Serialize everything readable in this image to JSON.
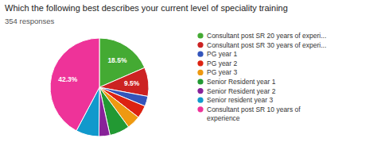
{
  "chart_data": {
    "type": "pie",
    "title": "Which the following best describes your current level of speciality training",
    "subtitle": "354 responses",
    "categories": [
      "Consultant post SR 20 years of experi...",
      "Consultant post SR 30 years of experi...",
      "PG year 1",
      "PG year 2",
      "PG year 3",
      "Senior Resident year 1",
      "Senior Resident year 2",
      "Senior resident year 3",
      "Consultant post SR 10 years of\nexperience"
    ],
    "values": [
      18.5,
      9.5,
      3.3,
      4.2,
      4.5,
      6.6,
      3.6,
      7.6,
      42.3
    ],
    "value_labels": [
      "18.5%",
      "9.5%",
      null,
      null,
      null,
      null,
      null,
      null,
      "42.3%"
    ],
    "colors": [
      "#44aa33",
      "#cc2222",
      "#3355bb",
      "#dd2211",
      "#ee9911",
      "#229933",
      "#882299",
      "#1199cc",
      "#ee3399"
    ],
    "data_labels": true,
    "legend": "right"
  }
}
